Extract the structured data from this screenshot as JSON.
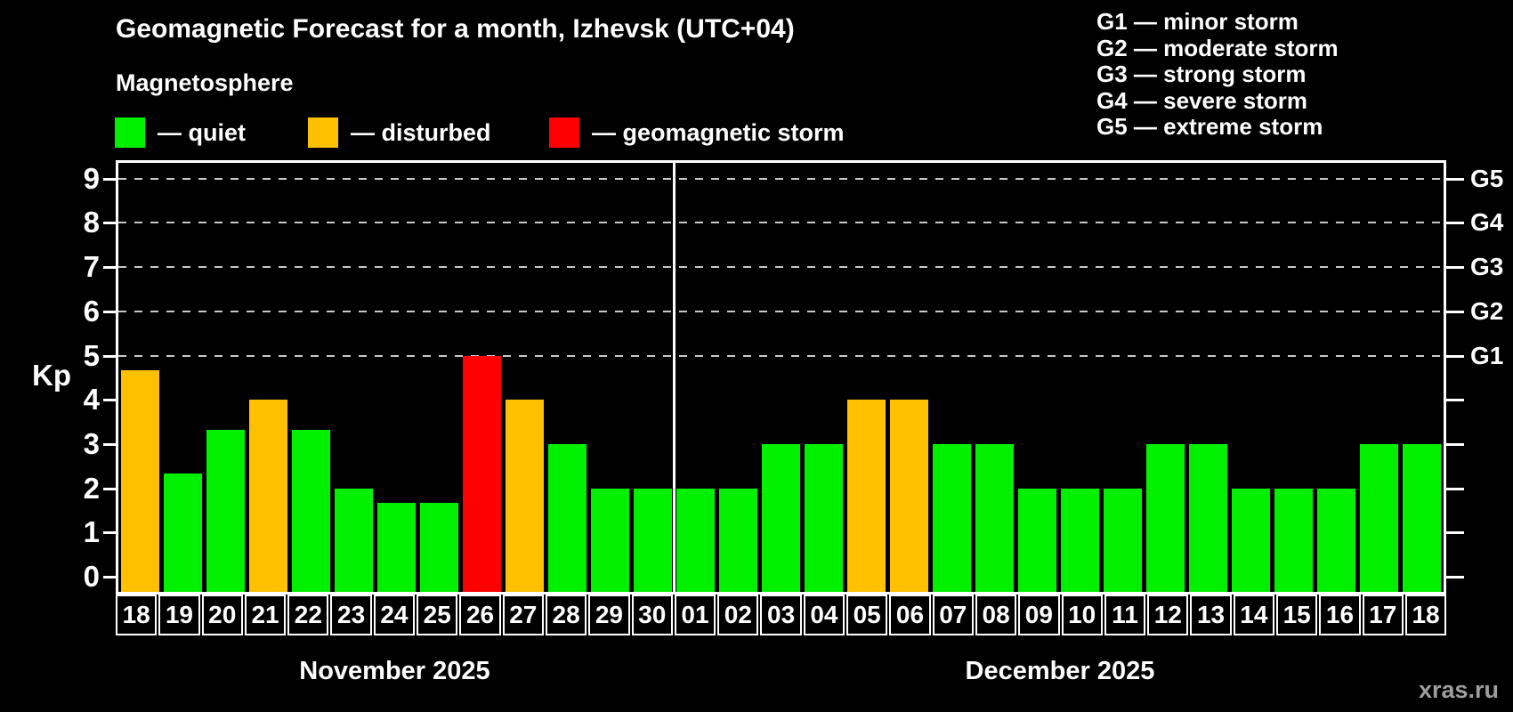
{
  "watermark": "xras.ru",
  "legend": {
    "items": [
      {
        "key": "quiet",
        "label": "— quiet",
        "color": "#00f000"
      },
      {
        "key": "disturbed",
        "label": "— disturbed",
        "color": "#ffc000"
      },
      {
        "key": "storm",
        "label": "— geomagnetic storm",
        "color": "#ff0000"
      }
    ]
  },
  "storm_scale_legend": [
    "G1 — minor storm",
    "G2 — moderate storm",
    "G3 — strong storm",
    "G4 — severe storm",
    "G5 — extreme storm"
  ],
  "chart_data": {
    "type": "bar",
    "title": "Geomagnetic Forecast for a month, Izhevsk (UTC+04)",
    "subtitle": "Magnetosphere",
    "ylabel": "Kp",
    "ylim": [
      0,
      9
    ],
    "y_ticks": [
      0,
      1,
      2,
      3,
      4,
      5,
      6,
      7,
      8,
      9
    ],
    "gridlines_at_kp": [
      5,
      6,
      7,
      8,
      9
    ],
    "grid_style": "dashed",
    "right_axis_labels": [
      {
        "kp": 5,
        "label": "G1"
      },
      {
        "kp": 6,
        "label": "G2"
      },
      {
        "kp": 7,
        "label": "G3"
      },
      {
        "kp": 8,
        "label": "G4"
      },
      {
        "kp": 9,
        "label": "G5"
      }
    ],
    "status_colors": {
      "quiet": "#00f000",
      "disturbed": "#ffc000",
      "storm": "#ff0000"
    },
    "months": [
      {
        "label": "November 2025",
        "points": [
          {
            "day": "18",
            "kp": 4.67,
            "status": "disturbed"
          },
          {
            "day": "19",
            "kp": 2.33,
            "status": "quiet"
          },
          {
            "day": "20",
            "kp": 3.33,
            "status": "quiet"
          },
          {
            "day": "21",
            "kp": 4.0,
            "status": "disturbed"
          },
          {
            "day": "22",
            "kp": 3.33,
            "status": "quiet"
          },
          {
            "day": "23",
            "kp": 2.0,
            "status": "quiet"
          },
          {
            "day": "24",
            "kp": 1.67,
            "status": "quiet"
          },
          {
            "day": "25",
            "kp": 1.67,
            "status": "quiet"
          },
          {
            "day": "26",
            "kp": 5.0,
            "status": "storm"
          },
          {
            "day": "27",
            "kp": 4.0,
            "status": "disturbed"
          },
          {
            "day": "28",
            "kp": 3.0,
            "status": "quiet"
          },
          {
            "day": "29",
            "kp": 2.0,
            "status": "quiet"
          },
          {
            "day": "30",
            "kp": 2.0,
            "status": "quiet"
          }
        ]
      },
      {
        "label": "December 2025",
        "points": [
          {
            "day": "01",
            "kp": 2.0,
            "status": "quiet"
          },
          {
            "day": "02",
            "kp": 2.0,
            "status": "quiet"
          },
          {
            "day": "03",
            "kp": 3.0,
            "status": "quiet"
          },
          {
            "day": "04",
            "kp": 3.0,
            "status": "quiet"
          },
          {
            "day": "05",
            "kp": 4.0,
            "status": "disturbed"
          },
          {
            "day": "06",
            "kp": 4.0,
            "status": "disturbed"
          },
          {
            "day": "07",
            "kp": 3.0,
            "status": "quiet"
          },
          {
            "day": "08",
            "kp": 3.0,
            "status": "quiet"
          },
          {
            "day": "09",
            "kp": 2.0,
            "status": "quiet"
          },
          {
            "day": "10",
            "kp": 2.0,
            "status": "quiet"
          },
          {
            "day": "11",
            "kp": 2.0,
            "status": "quiet"
          },
          {
            "day": "12",
            "kp": 3.0,
            "status": "quiet"
          },
          {
            "day": "13",
            "kp": 3.0,
            "status": "quiet"
          },
          {
            "day": "14",
            "kp": 2.0,
            "status": "quiet"
          },
          {
            "day": "15",
            "kp": 2.0,
            "status": "quiet"
          },
          {
            "day": "16",
            "kp": 2.0,
            "status": "quiet"
          },
          {
            "day": "17",
            "kp": 3.0,
            "status": "quiet"
          },
          {
            "day": "18",
            "kp": 3.0,
            "status": "quiet"
          }
        ]
      }
    ]
  }
}
